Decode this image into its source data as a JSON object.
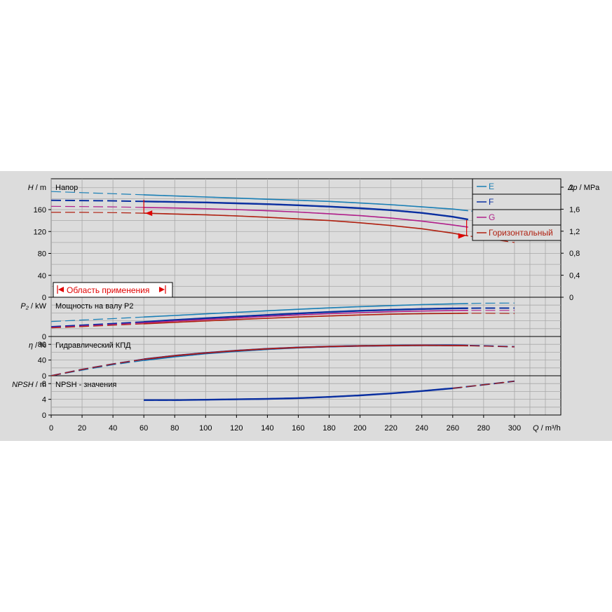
{
  "colors": {
    "background": "#dcdcdc",
    "plot_bg": "#dcdcdc",
    "grid": "#a8a8a8",
    "E": "#1a7fb5",
    "F": "#0a2fa0",
    "G": "#b0208a",
    "Horizontal": "#b02010",
    "region": "#e00000"
  },
  "chart_data": {
    "type": "line",
    "x_axis": {
      "label_symbol": "Q",
      "label_unit": "m³/h",
      "range": [
        0,
        330
      ],
      "ticks": [
        0,
        20,
        40,
        60,
        80,
        100,
        120,
        140,
        160,
        180,
        200,
        220,
        240,
        260,
        280,
        300
      ]
    },
    "legend": {
      "placement": "top-right",
      "entries": [
        {
          "key": "E",
          "label": "E",
          "color": "#1a7fb5"
        },
        {
          "key": "F",
          "label": "F",
          "color": "#0a2fa0"
        },
        {
          "key": "G",
          "label": "G",
          "color": "#b0208a"
        },
        {
          "key": "H",
          "label": "Горизонтальный",
          "color": "#b02010"
        }
      ]
    },
    "application_region": {
      "label": "Область применения",
      "q_range": [
        60,
        269
      ]
    },
    "panels": [
      {
        "id": "head",
        "title": "Напор",
        "y_symbol": "H",
        "y_unit": "m",
        "y_range": [
          0,
          200
        ],
        "y_ticks": [
          0,
          40,
          80,
          120,
          160
        ],
        "right_axis": {
          "symbol": "Δp",
          "unit": "MPa",
          "ticks": [
            {
              "v": 0,
              "label": "0"
            },
            {
              "v": 0.4,
              "label": "0,4"
            },
            {
              "v": 0.8,
              "label": "0,8"
            },
            {
              "v": 1.2,
              "label": "1,2"
            },
            {
              "v": 1.6,
              "label": "1,6"
            },
            {
              "v": 2.0,
              "label": "2"
            }
          ]
        },
        "series": [
          {
            "key": "E",
            "x": [
              0,
              20,
              40,
              60,
              80,
              100,
              120,
              140,
              160,
              180,
              200,
              220,
              240,
              260,
              270,
              280
            ],
            "y": [
              193,
              191,
              189,
              187,
              185,
              183,
              181,
              179,
              177,
              175,
              172,
              169,
              165,
              161,
              158,
              155
            ]
          },
          {
            "key": "F",
            "x": [
              0,
              20,
              40,
              60,
              80,
              100,
              120,
              140,
              160,
              180,
              200,
              220,
              240,
              260,
              270
            ],
            "y": [
              177,
              176.5,
              176,
              175,
              174,
              173,
              171.5,
              170,
              168,
              165.5,
              162.5,
              159,
              154,
              147,
              142
            ]
          },
          {
            "key": "G",
            "x": [
              0,
              20,
              40,
              60,
              80,
              100,
              120,
              140,
              160,
              180,
              200,
              220,
              240,
              260,
              270
            ],
            "y": [
              166,
              165.5,
              165,
              164,
              163,
              161.5,
              160,
              158,
              155.5,
              152.5,
              149,
              144.5,
              139,
              132,
              128
            ]
          },
          {
            "key": "H",
            "x": [
              0,
              20,
              40,
              60,
              80,
              100,
              120,
              140,
              160,
              180,
              200,
              220,
              240,
              260,
              270,
              280,
              300
            ],
            "y": [
              155,
              155,
              154.5,
              153.5,
              152,
              150.5,
              148.5,
              146,
              143,
              140,
              136,
              131,
              125,
              117,
              112,
              108,
              100
            ]
          }
        ]
      },
      {
        "id": "power",
        "title": "Мощность на валу P2",
        "y_symbol": "P₂",
        "y_unit": "kW",
        "y_range": [
          0,
          250
        ],
        "y_ticks": [
          0
        ],
        "series": [
          {
            "key": "E",
            "x": [
              0,
              20,
              40,
              60,
              80,
              100,
              120,
              140,
              160,
              180,
              200,
              220,
              240,
              260,
              270,
              280,
              300
            ],
            "y": [
              95,
              105,
              114,
              124,
              134,
              144,
              154,
              164,
              173,
              182,
              190,
              197,
              203,
              208,
              210,
              212,
              213
            ]
          },
          {
            "key": "F",
            "x": [
              0,
              20,
              40,
              60,
              80,
              100,
              120,
              140,
              160,
              180,
              200,
              220,
              240,
              260,
              270,
              280,
              300
            ],
            "y": [
              62,
              72,
              82,
              93,
              105,
              116,
              127,
              137,
              147,
              156,
              164,
              170,
              175,
              179,
              180,
              181,
              181
            ]
          },
          {
            "key": "G",
            "x": [
              0,
              20,
              40,
              60,
              80,
              100,
              120,
              140,
              160,
              180,
              200,
              220,
              240,
              260,
              270,
              280,
              300
            ],
            "y": [
              58,
              67,
              77,
              87,
              98,
              108,
              118,
              128,
              137,
              145,
              152,
              158,
              162,
              165,
              166,
              166,
              166
            ]
          },
          {
            "key": "H",
            "x": [
              0,
              20,
              40,
              60,
              80,
              100,
              120,
              140,
              160,
              180,
              200,
              220,
              240,
              260,
              270,
              280,
              300
            ],
            "y": [
              55,
              63,
              72,
              81,
              90,
              99,
              108,
              116,
              124,
              131,
              137,
              142,
              145,
              147,
              148,
              148,
              147
            ]
          }
        ]
      },
      {
        "id": "efficiency",
        "title": "Гидравлический КПД",
        "y_symbol": "η",
        "y_unit": "%",
        "y_range": [
          0,
          100
        ],
        "y_ticks": [
          0,
          40,
          80
        ],
        "series": [
          {
            "key": "E",
            "x": [
              0,
              20,
              40,
              60,
              80,
              100,
              120,
              140,
              160,
              180,
              200,
              220,
              240,
              260,
              270,
              280,
              300
            ],
            "y": [
              0,
              14,
              28,
              39,
              48,
              56,
              62,
              67,
              71,
              74,
              76,
              77,
              77.5,
              77,
              76.5,
              76,
              74
            ]
          },
          {
            "key": "F",
            "x": [
              0,
              20,
              40,
              60,
              80,
              100,
              120,
              140,
              160,
              180,
              200,
              220,
              240,
              260,
              270,
              280,
              300
            ],
            "y": [
              0,
              16,
              30,
              42,
              51,
              58,
              64,
              68.5,
              72,
              74.5,
              76,
              77,
              77.5,
              77.5,
              77,
              76,
              74
            ]
          },
          {
            "key": "G",
            "x": [
              0,
              20,
              40,
              60,
              80,
              100,
              120,
              140,
              160,
              180,
              200,
              220,
              240,
              260,
              270,
              280,
              300
            ],
            "y": [
              0,
              16,
              30,
              42,
              51,
              58,
              64,
              68.5,
              72,
              74.5,
              76,
              77,
              77.5,
              77,
              76.5,
              75.5,
              73.5
            ]
          },
          {
            "key": "H",
            "x": [
              0,
              20,
              40,
              60,
              80,
              100,
              120,
              140,
              160,
              180,
              200,
              220,
              240,
              260,
              270,
              280,
              300
            ],
            "y": [
              0,
              16,
              30,
              42,
              51,
              58,
              64,
              68.5,
              72,
              74.5,
              76,
              77,
              77.5,
              77,
              76.5,
              75.5,
              73.5
            ]
          }
        ]
      },
      {
        "id": "npsh",
        "title": "NPSH - значения",
        "y_symbol": "NPSH",
        "y_unit": "m",
        "y_range": [
          0,
          10
        ],
        "y_ticks": [
          0,
          4,
          8
        ],
        "series": [
          {
            "key": "F",
            "x": [
              60,
              80,
              100,
              120,
              140,
              160,
              180,
              200,
              220,
              240,
              260,
              280,
              300
            ],
            "y": [
              3.8,
              3.8,
              3.9,
              4.0,
              4.1,
              4.3,
              4.6,
              5.0,
              5.5,
              6.1,
              6.8,
              7.7,
              8.6
            ]
          },
          {
            "key": "H",
            "x": [
              260,
              280,
              300
            ],
            "y": [
              6.8,
              7.7,
              8.6
            ]
          }
        ]
      }
    ]
  }
}
